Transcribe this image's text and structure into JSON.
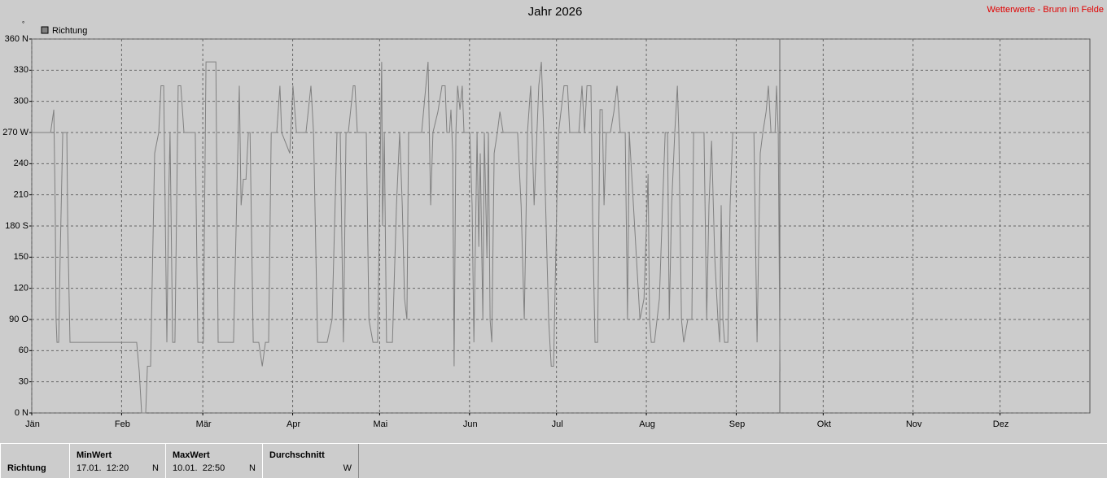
{
  "chart_data": {
    "type": "line",
    "title": "Jahr 2026",
    "source": "Wetterwerte - Brunn im Felde",
    "y_unit": "°",
    "x": [
      0,
      6.5,
      7.6,
      8.1,
      8.4,
      8.7,
      9.3,
      9.8,
      10.7,
      12.1,
      12.4,
      13.2,
      36.2,
      37.1,
      37.9,
      39.3,
      39.9,
      41.0,
      42.4,
      43.8,
      44.6,
      45.5,
      46.1,
      46.6,
      47.2,
      47.7,
      48.6,
      49.4,
      50.5,
      51.4,
      52.5,
      56.4,
      57.3,
      59.2,
      60.1,
      63.5,
      64.3,
      69.6,
      71.6,
      72.2,
      73.0,
      73.9,
      74.7,
      75.3,
      76.4,
      78.3,
      79.5,
      80.6,
      81.7,
      82.6,
      84.5,
      85.6,
      86.2,
      89.0,
      90.1,
      91.3,
      94.6,
      96.3,
      97.2,
      98.6,
      101.9,
      103.6,
      105.3,
      106.4,
      107.5,
      108.4,
      109.2,
      110.9,
      111.5,
      112.3,
      115.4,
      116.3,
      117.7,
      119.3,
      120.7,
      121.0,
      121.6,
      122.4,
      124.4,
      125.8,
      126.9,
      127.8,
      128.6,
      129.4,
      130.0,
      134.5,
      136.7,
      137.6,
      138.4,
      140.1,
      141.5,
      142.6,
      143.2,
      144.1,
      144.6,
      145.2,
      145.7,
      146.3,
      146.9,
      147.7,
      148.5,
      149.1,
      151.1,
      151.9,
      152.5,
      153.6,
      154.2,
      154.7,
      155.6,
      156.1,
      157.0,
      157.5,
      158.1,
      158.7,
      159.5,
      160.6,
      161.5,
      162.6,
      167.6,
      168.8,
      169.9,
      171.0,
      172.1,
      173.3,
      174.9,
      175.8,
      176.6,
      178.3,
      179.2,
      180.0,
      181.1,
      181.7,
      183.6,
      184.8,
      185.6,
      188.7,
      189.8,
      190.7,
      191.5,
      192.9,
      193.5,
      194.3,
      195.2,
      196.0,
      196.8,
      197.4,
      198.2,
      199.6,
      200.8,
      201.9,
      203.0,
      204.7,
      205.5,
      206.1,
      209.8,
      211.2,
      212.6,
      213.1,
      213.7,
      214.8,
      216.5,
      217.6,
      218.5,
      219.3,
      219.9,
      220.7,
      221.8,
      222.7,
      223.2,
      224.1,
      224.9,
      226.3,
      227.7,
      228.3,
      231.9,
      232.8,
      233.6,
      234.5,
      235.6,
      236.7,
      237.3,
      237.8,
      238.4,
      239.0,
      240.1,
      240.9,
      241.8,
      249.1,
      250.2,
      251.3,
      252.2,
      253.3,
      254.1,
      255.0,
      256.4,
      256.9,
      257.5,
      258.1
    ],
    "series": [
      {
        "name": "Richtung",
        "color": "#808080",
        "values": [
          270,
          270,
          292,
          200,
          90,
          68,
          68,
          150,
          270,
          270,
          180,
          68,
          68,
          40,
          0,
          0,
          45,
          45,
          250,
          270,
          315,
          315,
          180,
          68,
          200,
          270,
          68,
          68,
          315,
          315,
          270,
          270,
          68,
          68,
          338,
          338,
          68,
          68,
          315,
          200,
          225,
          225,
          270,
          270,
          68,
          68,
          45,
          68,
          68,
          270,
          270,
          315,
          270,
          250,
          315,
          270,
          270,
          315,
          270,
          68,
          68,
          90,
          270,
          270,
          68,
          270,
          270,
          315,
          315,
          270,
          270,
          90,
          68,
          68,
          338,
          180,
          270,
          68,
          68,
          200,
          270,
          200,
          110,
          90,
          270,
          270,
          338,
          200,
          270,
          290,
          315,
          315,
          270,
          270,
          292,
          250,
          45,
          270,
          315,
          292,
          315,
          270,
          270,
          200,
          68,
          270,
          160,
          250,
          90,
          270,
          150,
          270,
          90,
          68,
          250,
          270,
          290,
          270,
          270,
          200,
          90,
          270,
          315,
          200,
          315,
          338,
          270,
          90,
          45,
          45,
          200,
          270,
          315,
          315,
          270,
          270,
          315,
          270,
          315,
          315,
          180,
          68,
          68,
          292,
          292,
          200,
          270,
          270,
          290,
          315,
          270,
          270,
          90,
          270,
          90,
          110,
          230,
          90,
          68,
          68,
          110,
          200,
          270,
          270,
          90,
          200,
          270,
          315,
          270,
          90,
          68,
          90,
          90,
          270,
          270,
          90,
          200,
          262,
          150,
          90,
          68,
          200,
          90,
          68,
          68,
          200,
          270,
          270,
          68,
          250,
          270,
          290,
          315,
          270,
          270,
          315,
          270,
          40
        ]
      }
    ],
    "xlim": [
      0,
      365
    ],
    "xticks": [
      {
        "value": 0,
        "label": "Jän"
      },
      {
        "value": 31,
        "label": "Feb"
      },
      {
        "value": 59,
        "label": "Mär"
      },
      {
        "value": 90,
        "label": "Apr"
      },
      {
        "value": 120,
        "label": "Mai"
      },
      {
        "value": 151,
        "label": "Jun"
      },
      {
        "value": 181,
        "label": "Jul"
      },
      {
        "value": 212,
        "label": "Aug"
      },
      {
        "value": 243,
        "label": "Sep"
      },
      {
        "value": 273,
        "label": "Okt"
      },
      {
        "value": 304,
        "label": "Nov"
      },
      {
        "value": 334,
        "label": "Dez"
      }
    ],
    "ylim": [
      0,
      360
    ],
    "yticks": [
      {
        "value": 0,
        "label": "0 N"
      },
      30,
      60,
      {
        "value": 90,
        "label": "90 O"
      },
      120,
      150,
      {
        "value": 180,
        "label": "180 S"
      },
      210,
      240,
      {
        "value": 270,
        "label": "270 W"
      },
      300,
      330,
      {
        "value": 360,
        "label": "360 N"
      }
    ],
    "grid": true
  },
  "summary_table": {
    "row_label": "Richtung",
    "columns": [
      {
        "header": "MinWert",
        "time": "17.01.  12:20",
        "value": "N"
      },
      {
        "header": "MaxWert",
        "time": "10.01.  22:50",
        "value": "N"
      },
      {
        "header": "Durchschnitt",
        "value": "W"
      }
    ]
  }
}
